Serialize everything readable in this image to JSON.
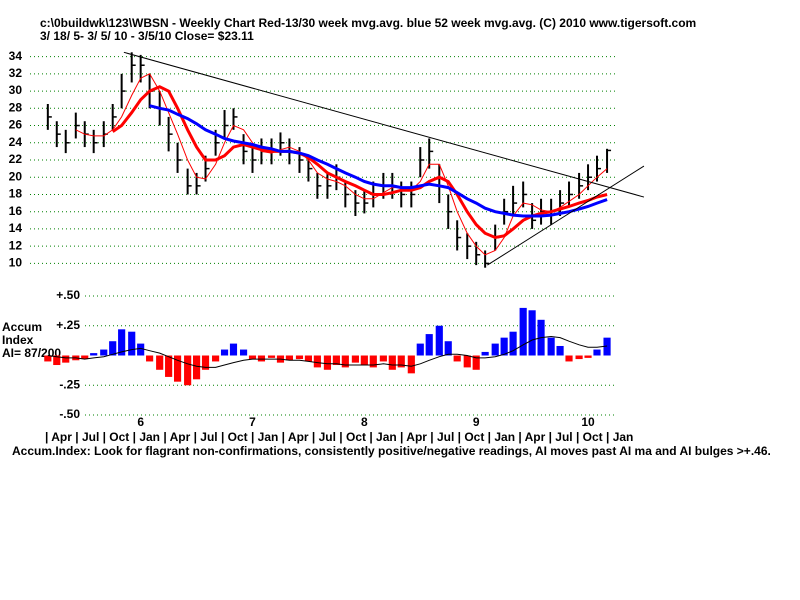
{
  "chart_data": [
    {
      "type": "ohlc",
      "title": "c:\\0buildwk\\123\\WBSN  - Weekly Chart  Red-13/30 week mvg.avg.  blue 52 week mvg.avg.  (C) 2010 www.tigersoft.com",
      "subtitle": " 3/ 18/ 5- 3/ 5/ 10 - 3/5/10   Close= $23.11",
      "x": [
        2005.17,
        2005.25,
        2005.33,
        2005.42,
        2005.5,
        2005.58,
        2005.67,
        2005.75,
        2005.83,
        2005.92,
        2006.0,
        2006.08,
        2006.17,
        2006.25,
        2006.33,
        2006.42,
        2006.5,
        2006.58,
        2006.67,
        2006.75,
        2006.83,
        2006.92,
        2007.0,
        2007.08,
        2007.17,
        2007.25,
        2007.33,
        2007.42,
        2007.5,
        2007.58,
        2007.67,
        2007.75,
        2007.83,
        2007.92,
        2008.0,
        2008.08,
        2008.17,
        2008.25,
        2008.33,
        2008.42,
        2008.5,
        2008.58,
        2008.67,
        2008.75,
        2008.83,
        2008.92,
        2009.0,
        2009.08,
        2009.17,
        2009.25,
        2009.33,
        2009.42,
        2009.5,
        2009.58,
        2009.67,
        2009.75,
        2009.83,
        2009.92,
        2010.0,
        2010.08,
        2010.17
      ],
      "xlim": [
        2005.1,
        2010.25
      ],
      "xticks": [
        {
          "value": 2006,
          "label": "6"
        },
        {
          "value": 2007,
          "label": "7"
        },
        {
          "value": 2008,
          "label": "8"
        },
        {
          "value": 2009,
          "label": "9"
        },
        {
          "value": 2010,
          "label": "10"
        }
      ],
      "x_month_labels": "| Apr | Jul  | Oct | Jan | Apr | Jul  | Oct | Jan | Apr | Jul  | Oct | Jan | Apr | Jul  | Oct | Jan | Apr | Jul  | Oct | Jan",
      "high": [
        28.5,
        26.5,
        25.5,
        27.5,
        26.5,
        25.5,
        26.5,
        28.5,
        32,
        34.5,
        34.2,
        32,
        30,
        27,
        24,
        21,
        20.5,
        22.5,
        25.5,
        27.8,
        28,
        25,
        23.5,
        24.5,
        24.5,
        25.2,
        24.5,
        23.5,
        22.5,
        20.5,
        20.5,
        21.5,
        19.5,
        18.5,
        18.5,
        19.5,
        20.5,
        20.5,
        19.5,
        19.5,
        23.5,
        24.5,
        21.5,
        18,
        15,
        13.5,
        12.5,
        11.5,
        14.5,
        17.5,
        19,
        19.5,
        17,
        17.5,
        17.5,
        18.5,
        19.5,
        20.5,
        21.5,
        22.5,
        23.3
      ],
      "low": [
        25.5,
        23.5,
        22.8,
        24.5,
        23.5,
        22.8,
        23.5,
        25.5,
        28,
        31,
        31,
        28,
        26,
        23,
        20.5,
        18,
        18,
        19.5,
        22.5,
        24.5,
        25.5,
        21.5,
        20.5,
        21.5,
        21.5,
        22.5,
        21.5,
        20.5,
        19.5,
        17.5,
        17.5,
        18.5,
        16.5,
        15.5,
        15.8,
        16.5,
        17.5,
        17.5,
        16.5,
        16.5,
        20,
        21,
        17,
        14,
        11.5,
        10.5,
        9.8,
        9.5,
        11.5,
        14.5,
        15.5,
        16.5,
        14,
        14.5,
        14.5,
        15.5,
        16.5,
        17.5,
        18.5,
        19.5,
        20.5
      ],
      "close": [
        27,
        25,
        24,
        26,
        25,
        24,
        25,
        27,
        30,
        33,
        33,
        30,
        28,
        25,
        22,
        19,
        19,
        21,
        24,
        26,
        27,
        23,
        22,
        23,
        23,
        24,
        23,
        22,
        21,
        19,
        19,
        20,
        18,
        17,
        17,
        18,
        19,
        19,
        18,
        18,
        22,
        23,
        19,
        16,
        13,
        12,
        11,
        10,
        13,
        16,
        17,
        18,
        15,
        16,
        16,
        17,
        18,
        19,
        20,
        21,
        23.11
      ],
      "bar_color": "#000000",
      "ylim": [
        9,
        35
      ],
      "yticks": [
        10,
        12,
        14,
        16,
        18,
        20,
        22,
        24,
        26,
        28,
        30,
        32,
        34
      ],
      "grid": true,
      "series": [
        {
          "color": "#ff0000",
          "width": 1,
          "values": [
            null,
            null,
            null,
            25.5,
            25,
            24.8,
            24.8,
            25.5,
            27,
            29.5,
            31.5,
            32,
            30,
            27.5,
            25,
            22,
            20,
            19.8,
            21.5,
            24,
            26,
            25.5,
            24,
            23,
            22.8,
            23.2,
            23.5,
            23,
            22,
            20.5,
            19.8,
            19.5,
            19,
            18,
            17.5,
            17.5,
            18.2,
            18.8,
            18.8,
            18.5,
            19.5,
            21.5,
            21.5,
            19,
            16,
            13.5,
            12,
            11,
            11.5,
            13,
            15.5,
            17,
            16.8,
            16.2,
            16,
            16.5,
            17.2,
            18,
            19,
            20,
            21
          ]
        },
        {
          "color": "#ff0000",
          "width": 3,
          "values": [
            null,
            null,
            null,
            null,
            null,
            null,
            null,
            25.3,
            26,
            27.5,
            29,
            30,
            30.5,
            30,
            28,
            25.5,
            23.5,
            22,
            22,
            22.5,
            23.5,
            23.8,
            23.5,
            23.2,
            23,
            23,
            23,
            22.8,
            22.3,
            21.5,
            20.5,
            20,
            19.5,
            19,
            18.5,
            18,
            18,
            18.2,
            18.5,
            18.5,
            18.8,
            19.5,
            20,
            19.5,
            18,
            16,
            14.5,
            13.5,
            13,
            13.2,
            14,
            15,
            15.5,
            15.8,
            16,
            16.3,
            16.6,
            17,
            17.3,
            17.7,
            18
          ]
        },
        {
          "color": "#0000ff",
          "width": 3,
          "values": [
            null,
            null,
            null,
            null,
            null,
            null,
            null,
            null,
            null,
            null,
            null,
            28.3,
            28,
            27.8,
            27.3,
            26.8,
            26.2,
            25.5,
            25,
            24.5,
            24.2,
            24,
            23.8,
            23.5,
            23.3,
            23,
            23,
            22.8,
            22.5,
            22,
            21.5,
            21,
            20.5,
            20,
            19.5,
            19.2,
            19,
            19,
            18.8,
            18.8,
            19,
            19.2,
            19,
            18.8,
            18.2,
            17.5,
            17,
            16.4,
            16,
            15.8,
            15.6,
            15.5,
            15.5,
            15.5,
            15.6,
            15.8,
            16,
            16.3,
            16.6,
            17,
            17.4
          ]
        }
      ],
      "trendlines": [
        {
          "x": [
            2005.85,
            2010.5
          ],
          "y": [
            34.5,
            17.7
          ]
        },
        {
          "x": [
            2009.1,
            2010.5
          ],
          "y": [
            9.8,
            21.3
          ]
        }
      ],
      "trend_color": "#000000"
    },
    {
      "type": "bar",
      "ylabel_lines": [
        "Accum",
        "Index"
      ],
      "ai_text": "AI= 87/200",
      "note": "Accum.Index: Look for flagrant non-confirmations, consistently positive/negative readings, AI moves past AI ma and AI bulges >+.46.",
      "values": [
        -0.05,
        -0.08,
        -0.06,
        -0.04,
        -0.03,
        0.02,
        0.05,
        0.12,
        0.22,
        0.2,
        0.1,
        -0.05,
        -0.12,
        -0.18,
        -0.22,
        -0.25,
        -0.2,
        -0.12,
        -0.05,
        0.05,
        0.1,
        0.05,
        -0.03,
        -0.05,
        -0.02,
        -0.06,
        -0.04,
        -0.03,
        -0.05,
        -0.1,
        -0.12,
        -0.08,
        -0.1,
        -0.06,
        -0.08,
        -0.1,
        -0.05,
        -0.12,
        -0.1,
        -0.15,
        0.1,
        0.18,
        0.25,
        0.12,
        -0.05,
        -0.1,
        -0.12,
        0.03,
        0.1,
        0.15,
        0.2,
        0.4,
        0.38,
        0.3,
        0.15,
        0.08,
        -0.05,
        -0.03,
        -0.02,
        0.05,
        0.15
      ],
      "positive_color": "#0000ff",
      "negative_color": "#ff0000",
      "ma": {
        "color": "#000000",
        "values": [
          0,
          -0.01,
          -0.02,
          -0.02,
          -0.03,
          -0.02,
          -0.01,
          0.01,
          0.03,
          0.05,
          0.06,
          0.04,
          0.02,
          -0.01,
          -0.04,
          -0.07,
          -0.09,
          -0.1,
          -0.1,
          -0.08,
          -0.06,
          -0.04,
          -0.03,
          -0.03,
          -0.03,
          -0.03,
          -0.04,
          -0.04,
          -0.05,
          -0.06,
          -0.07,
          -0.07,
          -0.08,
          -0.08,
          -0.08,
          -0.08,
          -0.07,
          -0.08,
          -0.08,
          -0.09,
          -0.07,
          -0.04,
          -0.01,
          0.01,
          0.01,
          0,
          -0.02,
          -0.02,
          -0.01,
          0.01,
          0.04,
          0.09,
          0.13,
          0.15,
          0.16,
          0.15,
          0.12,
          0.09,
          0.07,
          0.07,
          0.08
        ]
      },
      "ylim": [
        -0.5,
        0.5
      ],
      "yticks": [
        {
          "value": 0.5,
          "label": "+.50"
        },
        {
          "value": 0.25,
          "label": "+.25"
        },
        {
          "value": -0.25,
          "label": "-.25"
        },
        {
          "value": -0.5,
          "label": "-.50"
        }
      ],
      "grid": true
    }
  ]
}
